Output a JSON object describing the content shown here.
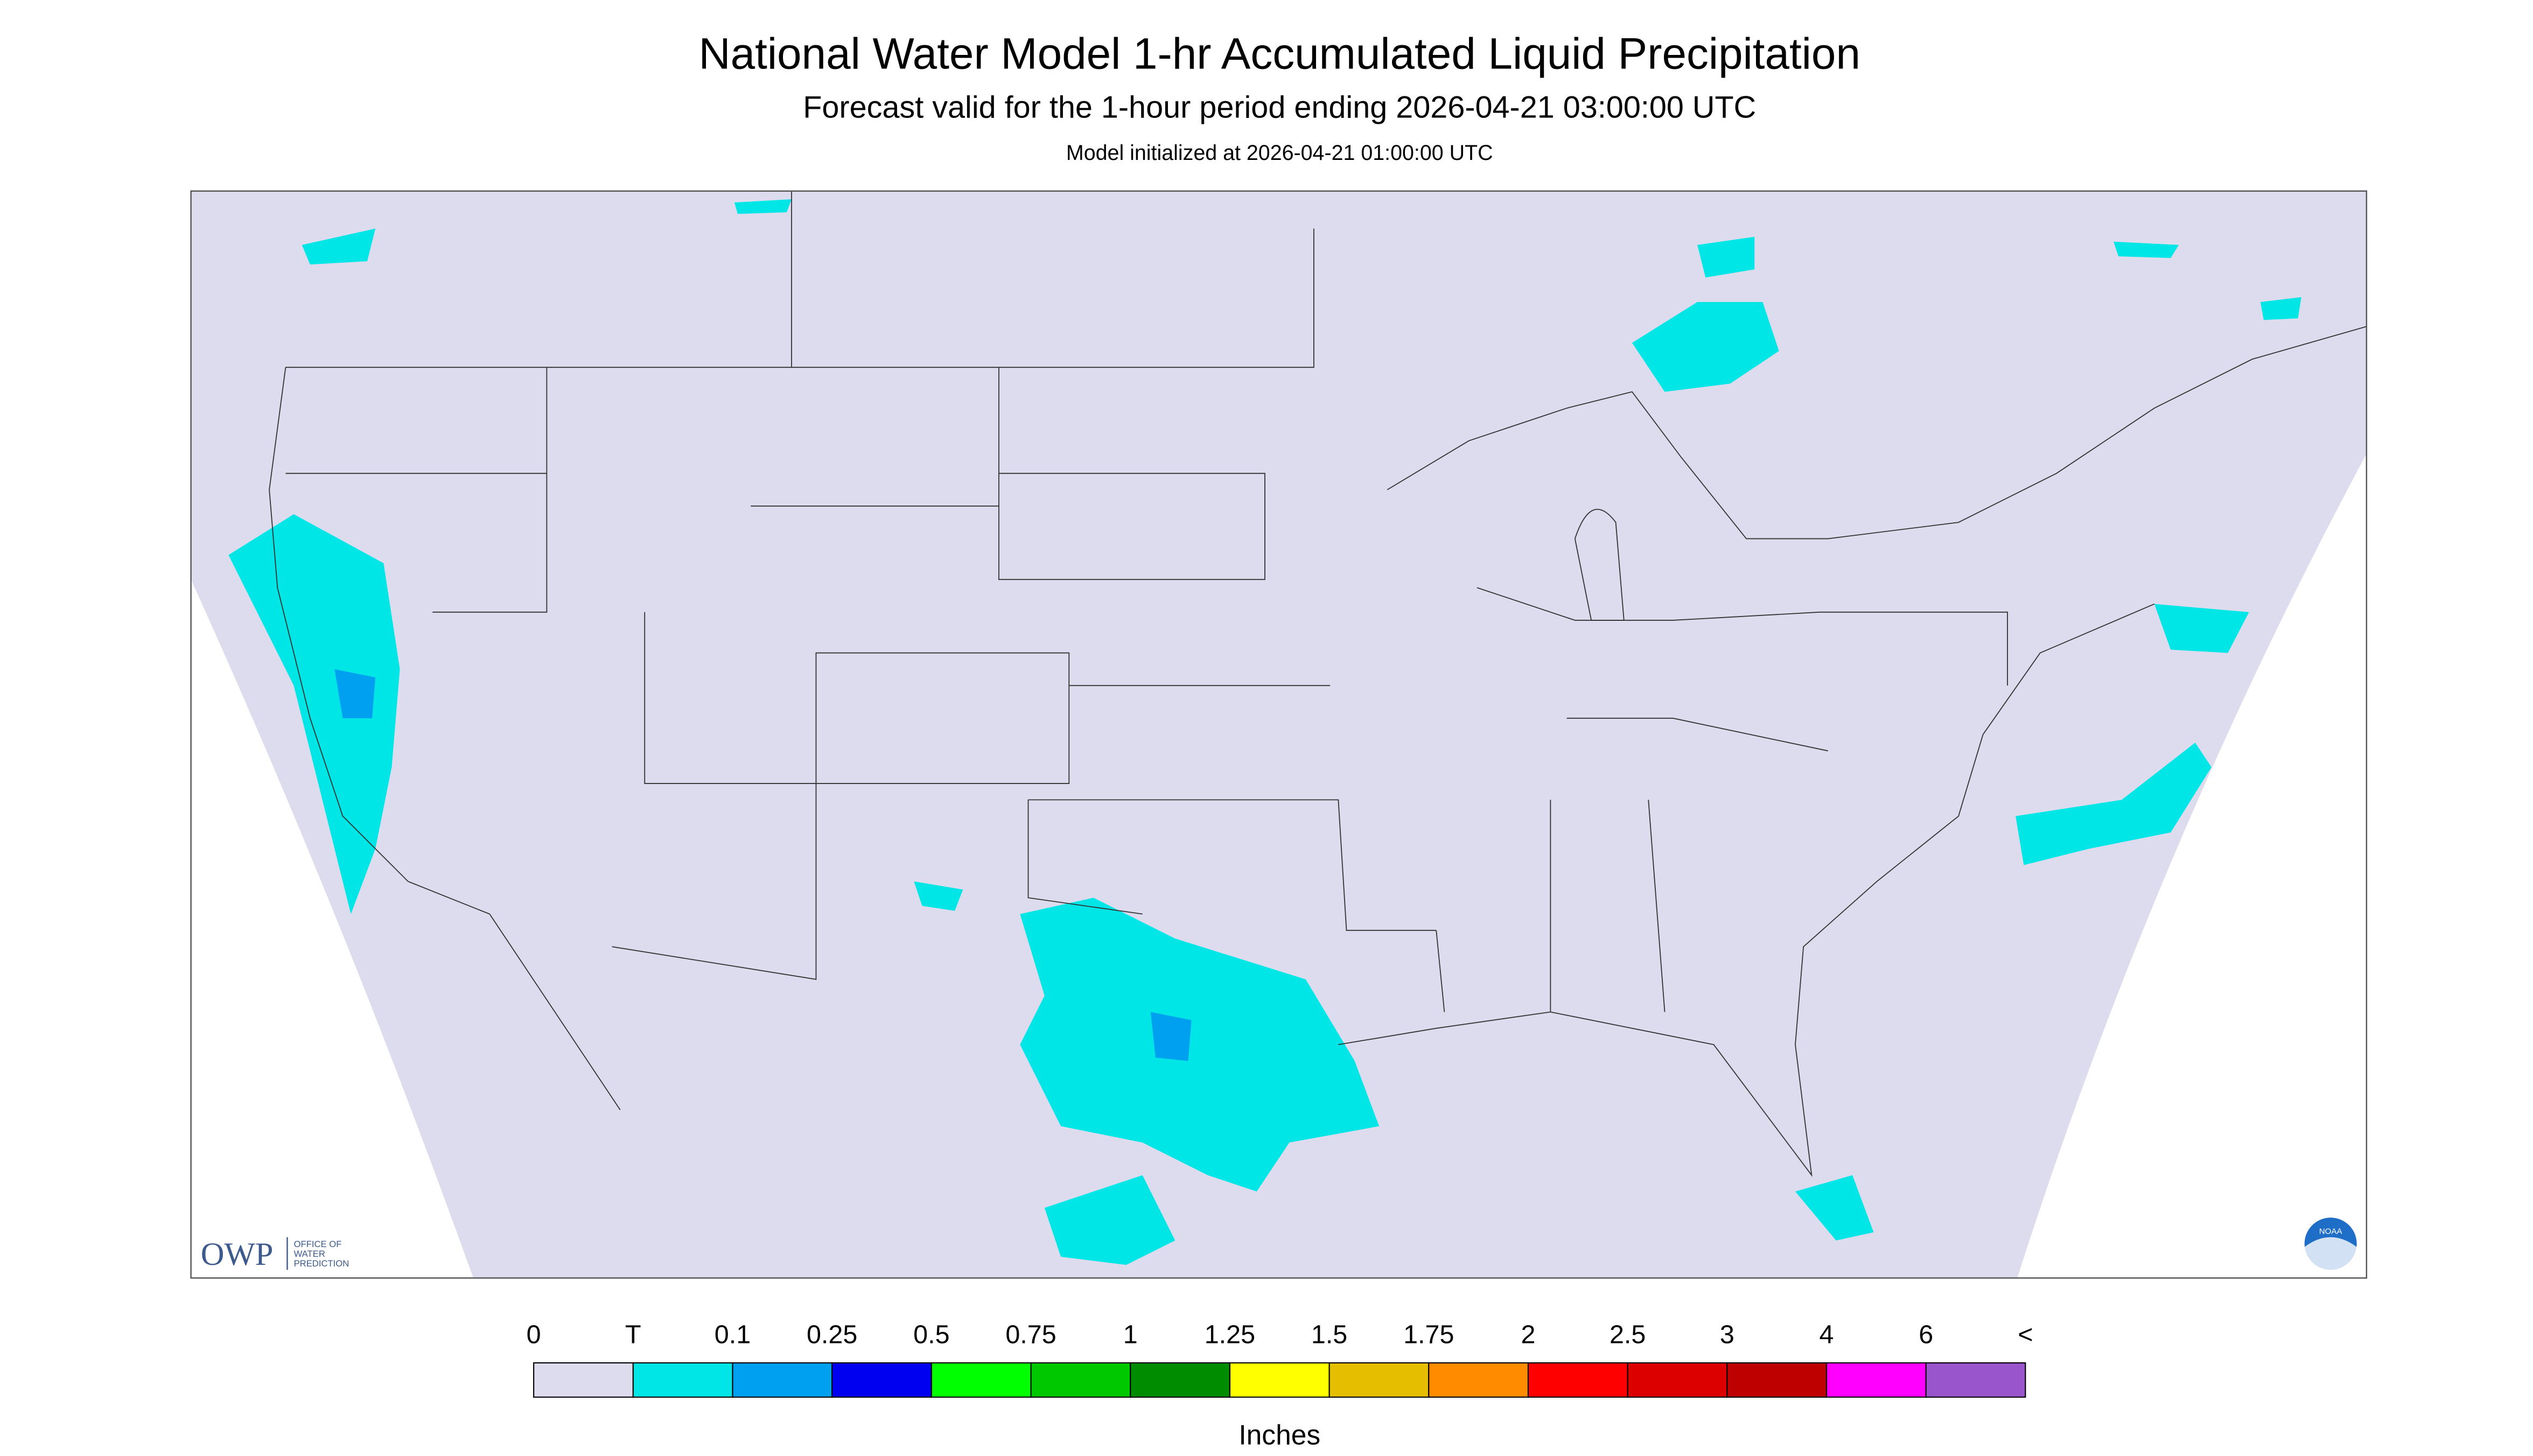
{
  "header": {
    "title": "National Water Model 1-hr Accumulated Liquid Precipitation",
    "subtitle": "Forecast valid for the 1-hour period ending 2026-04-21 03:00:00 UTC",
    "note": "Model initialized at 2026-04-21 01:00:00 UTC"
  },
  "logos": {
    "owp": "OWP",
    "owp_text": [
      "OFFICE OF",
      "WATER",
      "PREDICTION"
    ],
    "noaa": "NOAA"
  },
  "legend": {
    "labels": [
      "0",
      "T",
      "0.1",
      "0.25",
      "0.5",
      "0.75",
      "1",
      "1.25",
      "1.5",
      "1.75",
      "2",
      "2.5",
      "3",
      "4",
      "6",
      "<"
    ],
    "colors": [
      "#dcdcee",
      "#00e6e6",
      "#00a0f0",
      "#0000f0",
      "#00ff00",
      "#00c800",
      "#008c00",
      "#ffff00",
      "#e6be00",
      "#ff8c00",
      "#ff0000",
      "#dc0000",
      "#be0000",
      "#ff00ff",
      "#9955cc"
    ],
    "units": "Inches"
  }
}
